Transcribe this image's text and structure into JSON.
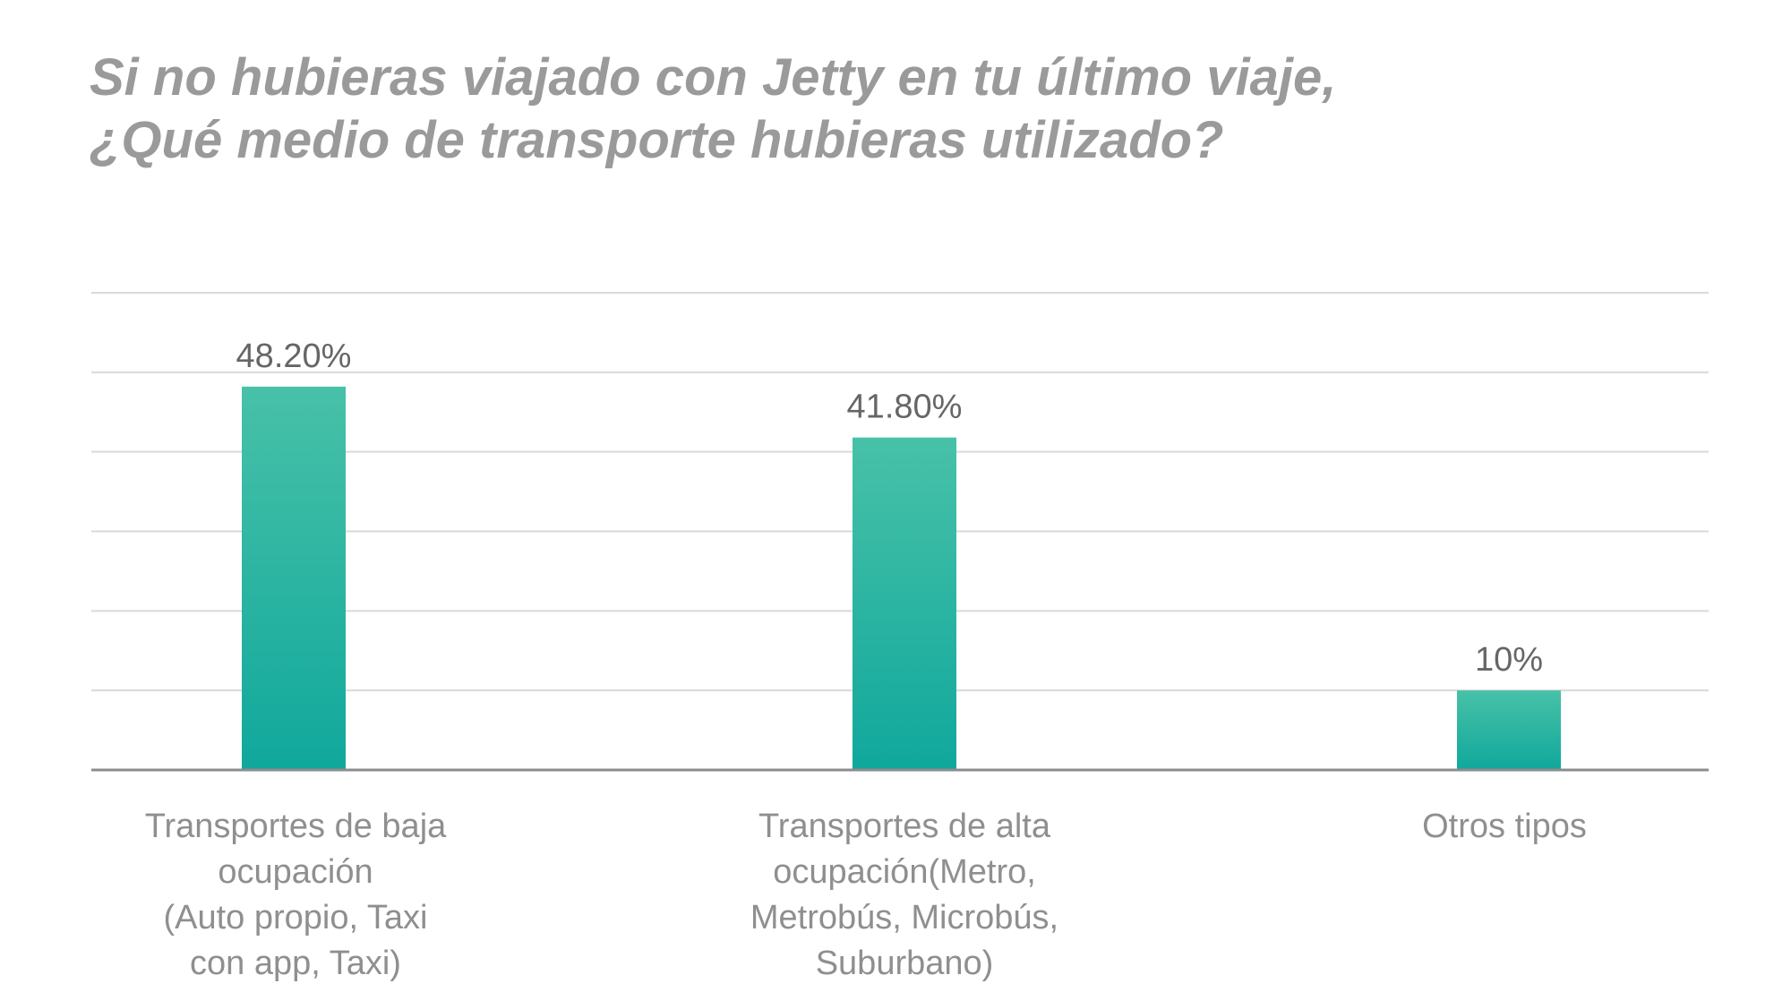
{
  "title_lines": [
    "Si no hubieras viajado con Jetty en tu último viaje,",
    "¿Qué medio de transporte hubieras utilizado?"
  ],
  "chart_data": {
    "type": "bar",
    "categories": [
      "Transportes de baja ocupación (Auto propio, Taxi con app, Taxi)",
      "Transportes de alta ocupación(Metro, Metrobús, Microbús, Suburbano)",
      "Otros tipos"
    ],
    "category_label_lines": [
      [
        "Transportes de baja",
        "ocupación",
        "(Auto propio, Taxi",
        "con app, Taxi)"
      ],
      [
        "Transportes de alta",
        "ocupación(Metro,",
        "Metrobús, Microbús,",
        "Suburbano)"
      ],
      [
        "Otros tipos"
      ]
    ],
    "values": [
      48.2,
      41.8,
      10
    ],
    "data_labels": [
      "48.20%",
      "41.80%",
      "10%"
    ],
    "ylim": [
      0,
      60
    ],
    "grid": true,
    "colors": {
      "bar_top": "#48c1a8",
      "bar_bottom": "#10a89c",
      "grid": "#d9d9d9",
      "baseline": "#8c8c8c",
      "data_label": "#666666"
    }
  }
}
